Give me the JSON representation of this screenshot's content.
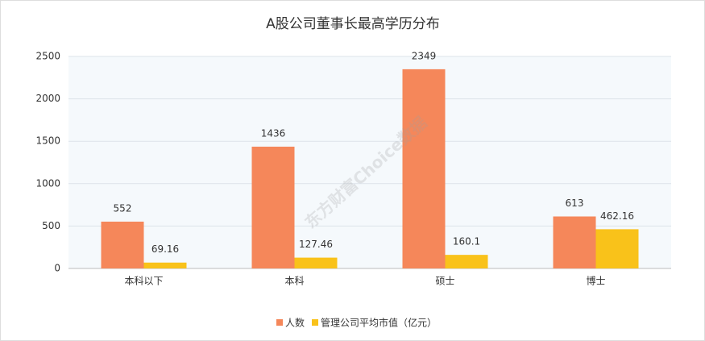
{
  "chart_data": {
    "type": "bar",
    "title": "A股公司董事长最高学历分布",
    "watermark": "东方财富Choice数据",
    "categories": [
      "本科以下",
      "本科",
      "硕士",
      "博士"
    ],
    "series": [
      {
        "name": "人数",
        "color": "#f5875a",
        "values": [
          552,
          1436,
          2349,
          613
        ]
      },
      {
        "name": "管理公司平均市值（亿元）",
        "color": "#f9c21a",
        "values": [
          69.16,
          127.46,
          160.1,
          462.16
        ]
      }
    ],
    "ylim": [
      0,
      2500
    ],
    "yticks": [
      0,
      500,
      1000,
      1500,
      2000,
      2500
    ],
    "grid": true,
    "legend": "bottom"
  }
}
